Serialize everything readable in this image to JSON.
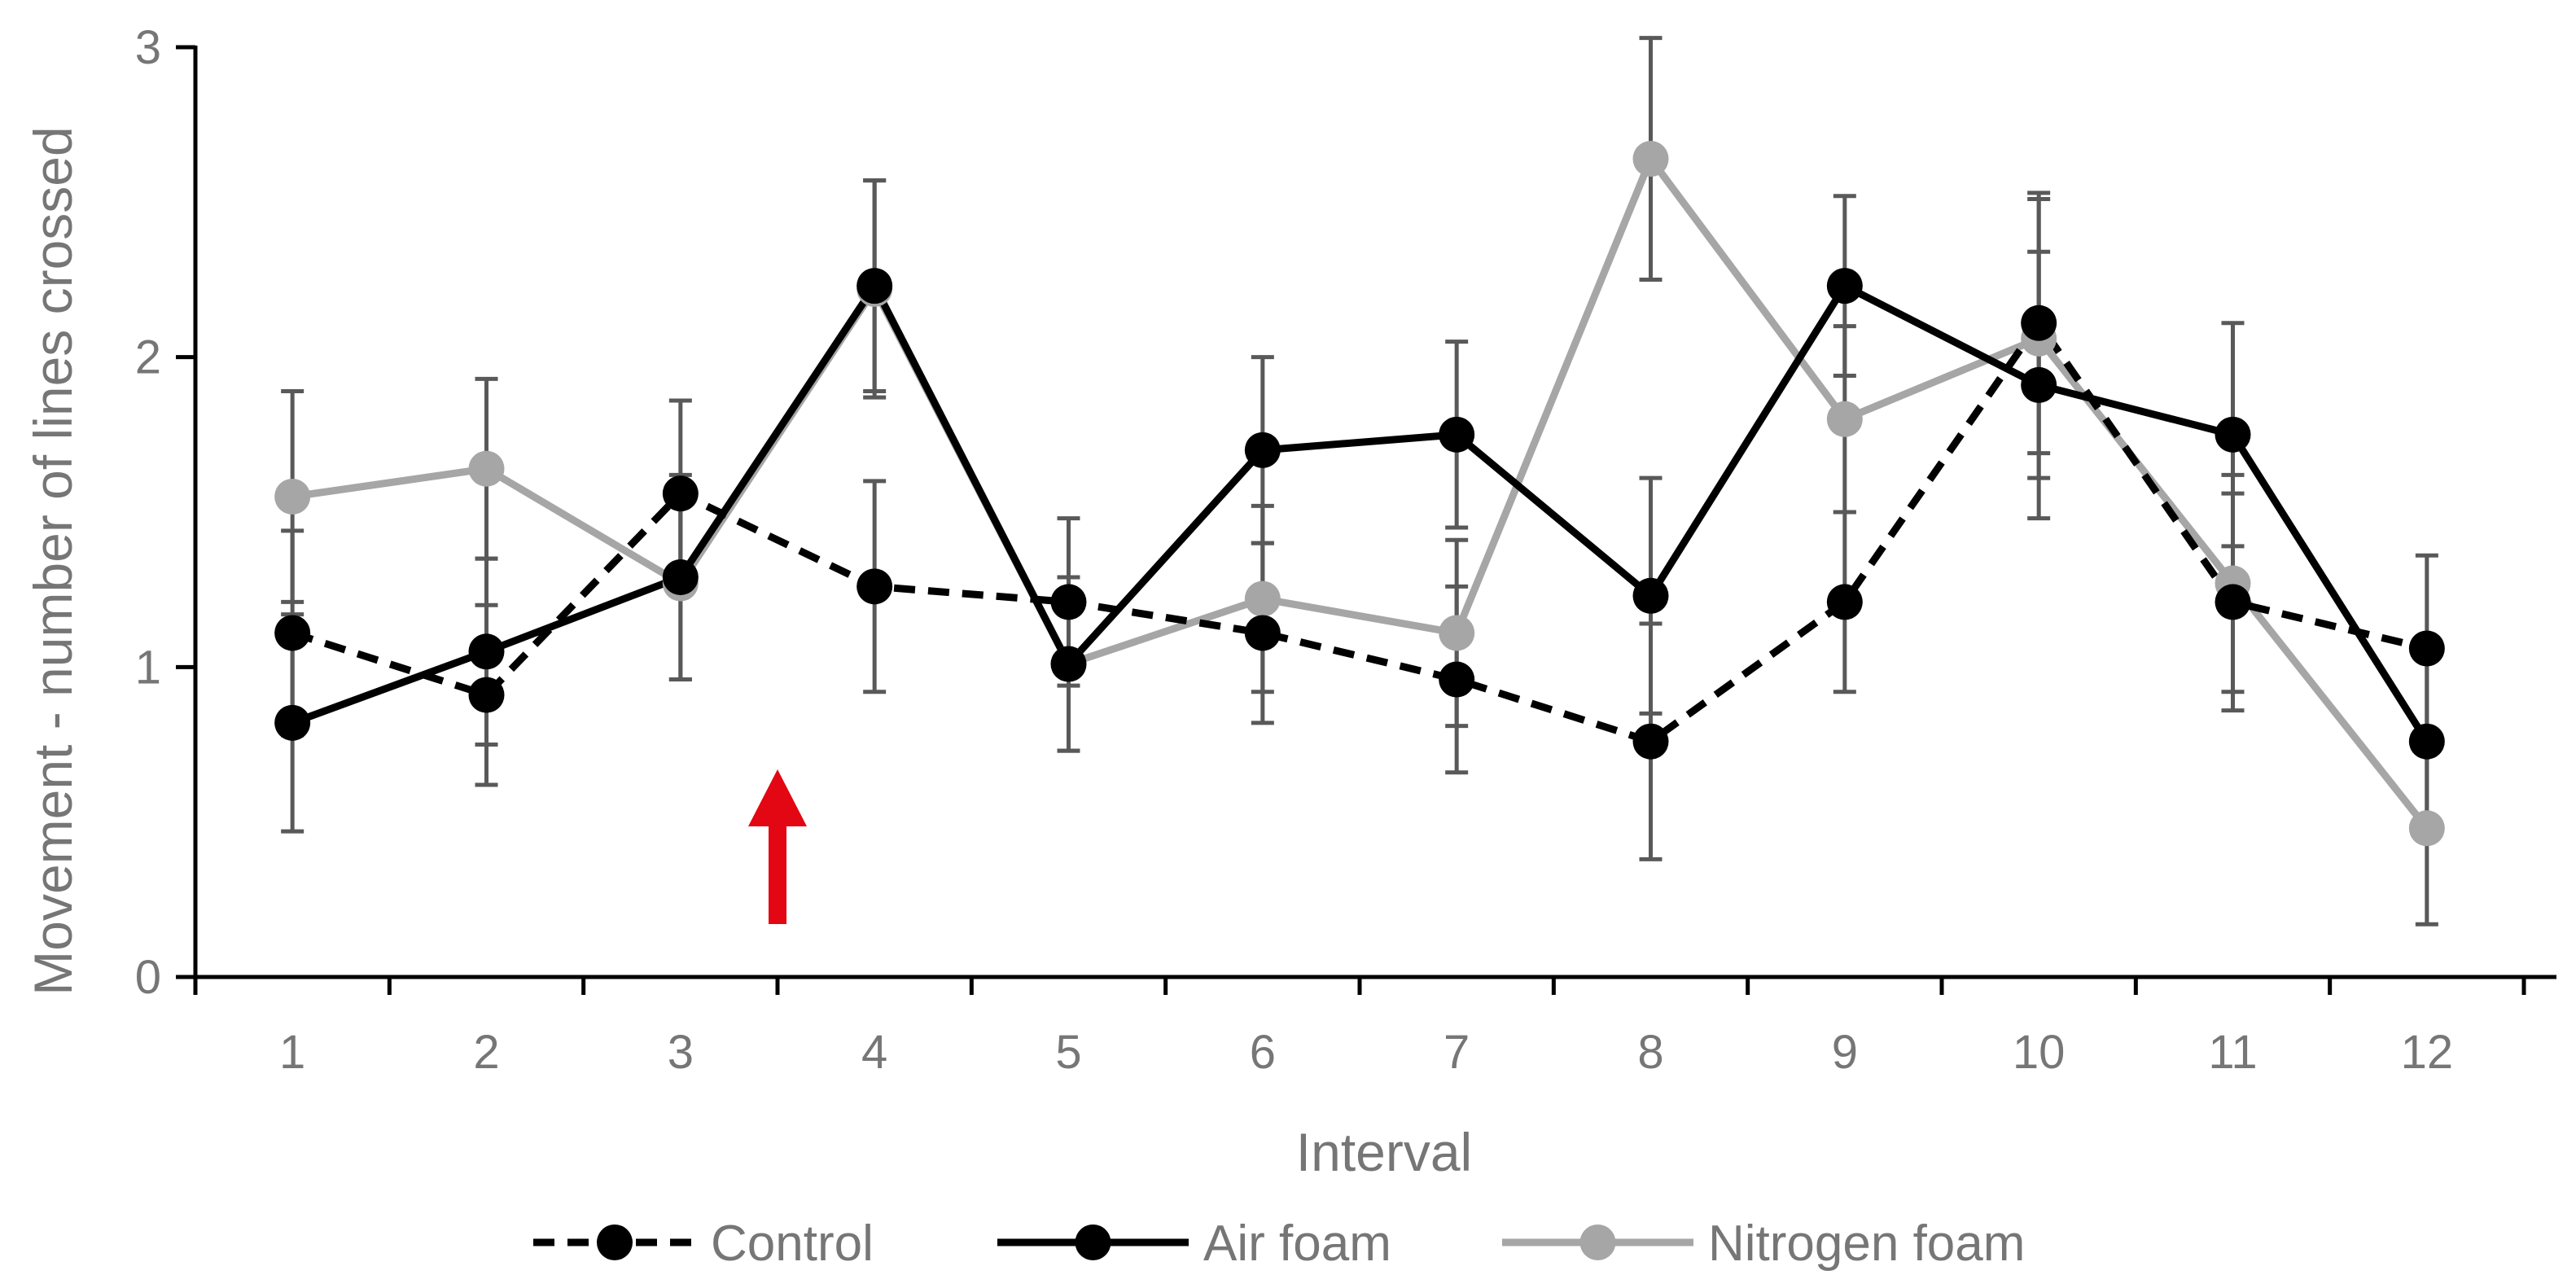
{
  "chart_data": {
    "type": "line",
    "title": "",
    "xlabel": "Interval",
    "ylabel": "Movement - number of lines crossed",
    "categories": [
      "1",
      "2",
      "3",
      "4",
      "5",
      "6",
      "7",
      "8",
      "9",
      "10",
      "11",
      "12"
    ],
    "ylim": [
      0,
      3
    ],
    "yticks": [
      "0",
      "1",
      "2",
      "3"
    ],
    "grid": false,
    "legend_position": "bottom",
    "series": [
      {
        "name": "Control",
        "style": "dashed",
        "color": "#000000",
        "values": [
          1.11,
          0.91,
          1.56,
          1.26,
          1.21,
          1.11,
          0.96,
          0.76,
          1.21,
          2.11,
          1.21,
          1.06
        ],
        "error": [
          0.33,
          0.29,
          0.3,
          0.34,
          0.27,
          0.29,
          0.3,
          0.38,
          0.29,
          0.42,
          0.35,
          0.3
        ]
      },
      {
        "name": "Air foam",
        "style": "solid",
        "color": "#000000",
        "values": [
          0.82,
          1.05,
          1.29,
          2.23,
          1.01,
          1.7,
          1.75,
          1.23,
          2.23,
          1.91,
          1.75,
          0.76
        ],
        "error": [
          0.35,
          0.3,
          0.33,
          0.34,
          0.28,
          0.3,
          0.3,
          0.38,
          0.29,
          0.43,
          0.36,
          0.3
        ]
      },
      {
        "name": "Nitrogen foam",
        "style": "solid",
        "color": "#a6a6a6",
        "values": [
          1.55,
          1.64,
          1.27,
          2.22,
          1.01,
          1.22,
          1.11,
          2.64,
          1.8,
          2.06,
          1.27,
          0.48
        ],
        "error": [
          0.34,
          0.29,
          0.31,
          0.35,
          0.28,
          0.3,
          0.3,
          0.39,
          0.3,
          0.45,
          0.35,
          0.31
        ]
      }
    ],
    "annotation": {
      "type": "arrow",
      "color": "#e30613",
      "position_between": [
        "3",
        "4"
      ]
    }
  }
}
